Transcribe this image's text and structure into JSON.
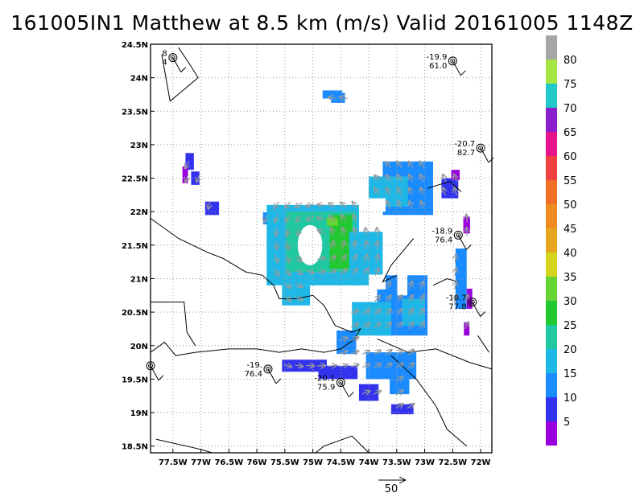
{
  "title": "161005IN1 Matthew at 8.5 km (m/s) Valid 20161005 1148Z",
  "map": {
    "lon_range": [
      -77.9,
      -71.8
    ],
    "lat_range": [
      18.4,
      24.5
    ],
    "lon_ticks": [
      {
        "value": -77.5,
        "label": "77.5W"
      },
      {
        "value": -77,
        "label": "77W"
      },
      {
        "value": -76.5,
        "label": "76.5W"
      },
      {
        "value": -76,
        "label": "76W"
      },
      {
        "value": -75.5,
        "label": "75.5W"
      },
      {
        "value": -75,
        "label": "75W"
      },
      {
        "value": -74.5,
        "label": "74.5W"
      },
      {
        "value": -74,
        "label": "74W"
      },
      {
        "value": -73.5,
        "label": "73.5W"
      },
      {
        "value": -73,
        "label": "73W"
      },
      {
        "value": -72.5,
        "label": "72.5W"
      },
      {
        "value": -72,
        "label": "72W"
      }
    ],
    "lat_ticks": [
      {
        "value": 18.5,
        "label": "18.5N"
      },
      {
        "value": 19,
        "label": "19N"
      },
      {
        "value": 19.5,
        "label": "19.5N"
      },
      {
        "value": 20,
        "label": "20N"
      },
      {
        "value": 20.5,
        "label": "20.5N"
      },
      {
        "value": 21,
        "label": "21N"
      },
      {
        "value": 21.5,
        "label": "21.5N"
      },
      {
        "value": 22,
        "label": "22N"
      },
      {
        "value": 22.5,
        "label": "22.5N"
      },
      {
        "value": 23,
        "label": "23N"
      },
      {
        "value": 23.5,
        "label": "23.5N"
      },
      {
        "value": 24,
        "label": "24N"
      },
      {
        "value": 24.5,
        "label": "24.5N"
      }
    ],
    "gridlines": true,
    "storm_center": {
      "lon": -74.9,
      "lat": 21.6
    },
    "land_color": "#ffffff",
    "coastlines": [
      [
        [
          -77.9,
          21.9
        ],
        [
          -77.4,
          21.6
        ],
        [
          -76.9,
          21.4
        ],
        [
          -76.6,
          21.3
        ],
        [
          -76.2,
          21.1
        ],
        [
          -75.9,
          21.05
        ],
        [
          -75.7,
          20.9
        ],
        [
          -75.6,
          20.7
        ],
        [
          -75.3,
          20.7
        ],
        [
          -75.0,
          20.75
        ],
        [
          -74.8,
          20.6
        ],
        [
          -74.6,
          20.3
        ],
        [
          -74.3,
          20.2
        ],
        [
          -74.15,
          20.25
        ],
        [
          -74.25,
          20.1
        ],
        [
          -74.5,
          19.95
        ],
        [
          -74.8,
          19.9
        ],
        [
          -75.2,
          19.95
        ],
        [
          -75.6,
          19.9
        ],
        [
          -76.0,
          19.95
        ],
        [
          -76.5,
          19.95
        ],
        [
          -77.1,
          19.9
        ],
        [
          -77.45,
          19.85
        ],
        [
          -77.65,
          20.05
        ],
        [
          -77.9,
          19.9
        ]
      ],
      [
        [
          -77.9,
          20.65
        ],
        [
          -77.3,
          20.65
        ],
        [
          -77.25,
          20.2
        ],
        [
          -77.1,
          20.0
        ]
      ],
      [
        [
          -73.85,
          20.1
        ],
        [
          -73.3,
          19.9
        ],
        [
          -72.8,
          19.95
        ],
        [
          -72.2,
          19.75
        ],
        [
          -71.8,
          19.65
        ]
      ],
      [
        [
          -73.6,
          19.85
        ],
        [
          -73.15,
          19.5
        ],
        [
          -72.8,
          19.1
        ],
        [
          -72.6,
          18.75
        ],
        [
          -72.25,
          18.5
        ]
      ],
      [
        [
          -72.05,
          20.15
        ],
        [
          -71.85,
          19.9
        ]
      ],
      [
        [
          -74.0,
          18.4
        ],
        [
          -74.3,
          18.65
        ],
        [
          -74.8,
          18.5
        ],
        [
          -74.95,
          18.4
        ]
      ],
      [
        [
          -77.8,
          18.6
        ],
        [
          -77.0,
          18.45
        ],
        [
          -76.8,
          18.4
        ]
      ],
      [
        [
          -73.2,
          21.6
        ],
        [
          -73.6,
          21.2
        ],
        [
          -73.75,
          20.95
        ],
        [
          -73.5,
          21.05
        ]
      ],
      [
        [
          -72.85,
          20.9
        ],
        [
          -72.6,
          21.0
        ],
        [
          -72.4,
          20.95
        ]
      ],
      [
        [
          -77.4,
          24.45
        ],
        [
          -77.2,
          24.2
        ],
        [
          -77.05,
          24.0
        ],
        [
          -77.55,
          23.65
        ],
        [
          -77.7,
          24.35
        ]
      ],
      [
        [
          -72.95,
          22.35
        ],
        [
          -72.55,
          22.45
        ],
        [
          -72.35,
          22.3
        ]
      ]
    ]
  },
  "cells": [
    {
      "lon": -74.65,
      "lat": 23.75,
      "w": 0.35,
      "h": 0.12,
      "v": 15
    },
    {
      "lon": -74.55,
      "lat": 23.7,
      "w": 0.25,
      "h": 0.15,
      "v": 18
    },
    {
      "lon": -77.2,
      "lat": 22.75,
      "w": 0.15,
      "h": 0.25,
      "v": 10
    },
    {
      "lon": -77.28,
      "lat": 22.55,
      "w": 0.1,
      "h": 0.25,
      "v": 5
    },
    {
      "lon": -77.1,
      "lat": 22.5,
      "w": 0.15,
      "h": 0.2,
      "v": 12
    },
    {
      "lon": -76.8,
      "lat": 22.05,
      "w": 0.25,
      "h": 0.2,
      "v": 10
    },
    {
      "lon": -75.85,
      "lat": 21.9,
      "w": 0.08,
      "h": 0.18,
      "v": 16
    },
    {
      "lon": -73.3,
      "lat": 22.35,
      "w": 0.9,
      "h": 0.8,
      "v": 18
    },
    {
      "lon": -72.55,
      "lat": 22.35,
      "w": 0.3,
      "h": 0.3,
      "v": 14
    },
    {
      "lon": -72.45,
      "lat": 22.55,
      "w": 0.15,
      "h": 0.15,
      "v": 8
    },
    {
      "lon": -72.25,
      "lat": 21.8,
      "w": 0.12,
      "h": 0.25,
      "v": 8
    },
    {
      "lon": -72.35,
      "lat": 21.0,
      "w": 0.2,
      "h": 0.9,
      "v": 18
    },
    {
      "lon": -72.2,
      "lat": 20.7,
      "w": 0.1,
      "h": 0.3,
      "v": 5
    },
    {
      "lon": -72.25,
      "lat": 20.25,
      "w": 0.1,
      "h": 0.2,
      "v": 7
    },
    {
      "lon": -75.0,
      "lat": 21.5,
      "w": 1.65,
      "h": 1.2,
      "v": 22
    },
    {
      "lon": -74.85,
      "lat": 21.55,
      "w": 1.25,
      "h": 0.9,
      "v": 27
    },
    {
      "lon": -74.5,
      "lat": 21.55,
      "w": 0.4,
      "h": 0.8,
      "v": 31
    },
    {
      "lon": -74.65,
      "lat": 21.85,
      "w": 0.2,
      "h": 0.12,
      "v": 38
    },
    {
      "lon": -74.5,
      "lat": 21.5,
      "w": 0.12,
      "h": 0.25,
      "v": 34
    },
    {
      "lon": -74.05,
      "lat": 21.3,
      "w": 0.6,
      "h": 0.8,
      "v": 20
    },
    {
      "lon": -73.65,
      "lat": 22.3,
      "w": 0.7,
      "h": 0.45,
      "v": 21
    },
    {
      "lon": -73.4,
      "lat": 20.6,
      "w": 0.9,
      "h": 0.9,
      "v": 18
    },
    {
      "lon": -73.2,
      "lat": 20.5,
      "w": 0.4,
      "h": 0.4,
      "v": 22
    },
    {
      "lon": -73.95,
      "lat": 20.4,
      "w": 0.7,
      "h": 0.5,
      "v": 20
    },
    {
      "lon": -75.3,
      "lat": 20.75,
      "w": 0.5,
      "h": 0.3,
      "v": 20
    },
    {
      "lon": -74.4,
      "lat": 20.05,
      "w": 0.35,
      "h": 0.35,
      "v": 19
    },
    {
      "lon": -75.15,
      "lat": 19.7,
      "w": 0.8,
      "h": 0.18,
      "v": 14
    },
    {
      "lon": -74.55,
      "lat": 19.6,
      "w": 0.7,
      "h": 0.2,
      "v": 14
    },
    {
      "lon": -73.6,
      "lat": 19.7,
      "w": 0.9,
      "h": 0.4,
      "v": 15
    },
    {
      "lon": -74.0,
      "lat": 19.3,
      "w": 0.35,
      "h": 0.25,
      "v": 14
    },
    {
      "lon": -73.45,
      "lat": 19.4,
      "w": 0.35,
      "h": 0.25,
      "v": 17
    },
    {
      "lon": -73.4,
      "lat": 19.05,
      "w": 0.4,
      "h": 0.15,
      "v": 14
    }
  ],
  "eye": {
    "lon": -75.05,
    "lat": 21.5,
    "rx": 0.22,
    "ry": 0.3
  },
  "holes": [
    {
      "lon": -73.4,
      "lat": 21.0,
      "w": 0.18,
      "h": 0.5
    },
    {
      "lon": -73.85,
      "lat": 20.95,
      "w": 0.3,
      "h": 0.22
    },
    {
      "lon": -73.9,
      "lat": 22.1,
      "w": 0.4,
      "h": 0.2
    }
  ],
  "observations": [
    {
      "lon": -77.5,
      "lat": 24.3,
      "label1": "8",
      "label2": "4"
    },
    {
      "lon": -72.5,
      "lat": 24.25,
      "label1": "-19.9",
      "label2": "61.0"
    },
    {
      "lon": -72.0,
      "lat": 22.95,
      "label1": "-20.7",
      "label2": "82.7"
    },
    {
      "lon": -72.4,
      "lat": 21.65,
      "label1": "-18.9",
      "label2": "76.4"
    },
    {
      "lon": -72.15,
      "lat": 20.65,
      "label1": "-18.7",
      "label2": "77.8"
    },
    {
      "lon": -75.8,
      "lat": 19.65,
      "label1": "-19.",
      "label2": "76.4"
    },
    {
      "lon": -74.5,
      "lat": 19.45,
      "label1": "-20.1",
      "label2": "75.9"
    },
    {
      "lon": -77.9,
      "lat": 19.7,
      "label1": "",
      "label2": ""
    }
  ],
  "colorbar": {
    "levels": [
      {
        "label": "5",
        "color": "#9900dd"
      },
      {
        "label": "10",
        "color": "#3333ee"
      },
      {
        "label": "15",
        "color": "#1a8cff"
      },
      {
        "label": "20",
        "color": "#1fb8e6"
      },
      {
        "label": "25",
        "color": "#1fc8a0"
      },
      {
        "label": "30",
        "color": "#22c830"
      },
      {
        "label": "35",
        "color": "#66d433"
      },
      {
        "label": "40",
        "color": "#d4d41f"
      },
      {
        "label": "45",
        "color": "#e6a61f"
      },
      {
        "label": "50",
        "color": "#f08c1f"
      },
      {
        "label": "55",
        "color": "#f06e26"
      },
      {
        "label": "60",
        "color": "#f04040"
      },
      {
        "label": "65",
        "color": "#e6138c"
      },
      {
        "label": "70",
        "color": "#8c1fcc"
      },
      {
        "label": "75",
        "color": "#20c8c8"
      },
      {
        "label": "80",
        "color": "#a6e640"
      }
    ],
    "top_color": "#a6a6a6"
  },
  "reference_vector": {
    "label": "50"
  }
}
